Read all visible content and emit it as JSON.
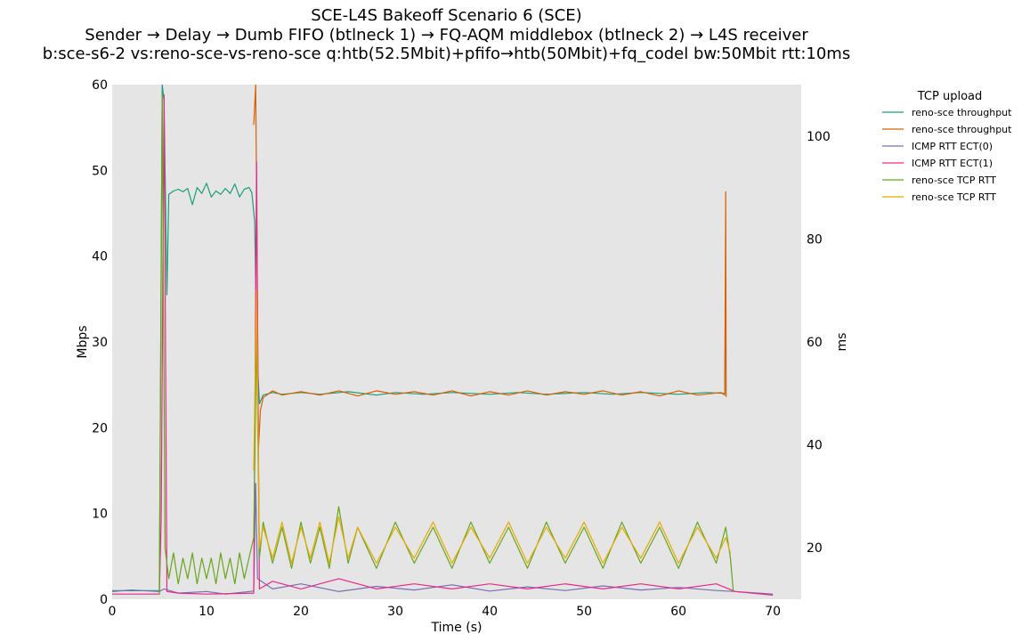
{
  "chart_data": {
    "type": "line",
    "title": "SCE-L4S Bakeoff Scenario 6 (SCE)",
    "subtitle_1": "Sender → Delay → Dumb FIFO (btlneck 1) → FQ-AQM middlebox (btlneck 2) → L4S receiver",
    "subtitle_2": "b:sce-s6-2 vs:reno-sce-vs-reno-sce q:htb(52.5Mbit)+pfifo→htb(50Mbit)+fq_codel bw:50Mbit rtt:10ms",
    "xlabel": "Time (s)",
    "ylabel_left": "Mbps",
    "ylabel_right": "ms",
    "xlim": [
      0,
      73
    ],
    "ylim_left": [
      0,
      60
    ],
    "ylim_right": [
      10,
      110
    ],
    "x_ticks": [
      "0",
      "10",
      "20",
      "30",
      "40",
      "50",
      "60",
      "70"
    ],
    "y_left_ticks": [
      "0",
      "10",
      "20",
      "30",
      "40",
      "50",
      "60"
    ],
    "y_right_ticks": [
      "20",
      "40",
      "60",
      "80",
      "100"
    ],
    "grid": false,
    "background": "#e5e5e5",
    "legend": {
      "title": "TCP upload",
      "placement": "outside-right",
      "entries": [
        {
          "label": "reno-sce throughput",
          "color": "#1b9e77"
        },
        {
          "label": "reno-sce throughput",
          "color": "#d95f02"
        },
        {
          "label": "ICMP RTT ECT(0)",
          "color": "#7570b3"
        },
        {
          "label": "ICMP RTT ECT(1)",
          "color": "#e7298a"
        },
        {
          "label": "reno-sce TCP RTT",
          "color": "#66a61e"
        },
        {
          "label": "reno-sce TCP RTT",
          "color": "#e6ab02"
        }
      ]
    },
    "series": [
      {
        "name": "reno-sce throughput",
        "axis": "left",
        "color": "#1b9e77",
        "points": [
          [
            0,
            1.0
          ],
          [
            5.0,
            1.0
          ],
          [
            5.3,
            60
          ],
          [
            5.5,
            58
          ],
          [
            5.8,
            35.5
          ],
          [
            6.0,
            47.2
          ],
          [
            6.5,
            47.6
          ],
          [
            7.0,
            47.8
          ],
          [
            7.5,
            47.5
          ],
          [
            8.0,
            47.9
          ],
          [
            8.5,
            46.0
          ],
          [
            9.0,
            48.0
          ],
          [
            9.5,
            47.3
          ],
          [
            10.0,
            48.5
          ],
          [
            10.5,
            46.9
          ],
          [
            11.0,
            47.6
          ],
          [
            11.5,
            47.2
          ],
          [
            12.0,
            47.9
          ],
          [
            12.5,
            47.3
          ],
          [
            13.0,
            48.4
          ],
          [
            13.5,
            46.9
          ],
          [
            14.0,
            47.8
          ],
          [
            14.5,
            48.0
          ],
          [
            14.8,
            47.4
          ],
          [
            15.1,
            44.0
          ],
          [
            15.3,
            30.0
          ],
          [
            15.6,
            22.8
          ],
          [
            16.0,
            23.8
          ],
          [
            17,
            24.1
          ],
          [
            18,
            23.9
          ],
          [
            20,
            24.1
          ],
          [
            22,
            23.9
          ],
          [
            25,
            24.2
          ],
          [
            28,
            23.8
          ],
          [
            30,
            24.1
          ],
          [
            33,
            23.9
          ],
          [
            36,
            24.1
          ],
          [
            40,
            23.9
          ],
          [
            43,
            24.1
          ],
          [
            46,
            23.9
          ],
          [
            50,
            24.1
          ],
          [
            53,
            23.9
          ],
          [
            56,
            24.1
          ],
          [
            60,
            23.9
          ],
          [
            63,
            24.1
          ],
          [
            64.9,
            24.0
          ],
          [
            65.0,
            35.2
          ]
        ]
      },
      {
        "name": "reno-sce throughput",
        "axis": "left",
        "color": "#d95f02",
        "points": [
          [
            15.0,
            55.3
          ],
          [
            15.2,
            60
          ],
          [
            15.3,
            48.0
          ],
          [
            15.5,
            17.5
          ],
          [
            15.7,
            22.0
          ],
          [
            16.0,
            23.5
          ],
          [
            17,
            24.3
          ],
          [
            18,
            23.8
          ],
          [
            20,
            24.2
          ],
          [
            22,
            23.8
          ],
          [
            24,
            24.3
          ],
          [
            26,
            23.7
          ],
          [
            28,
            24.3
          ],
          [
            30,
            23.9
          ],
          [
            32,
            24.2
          ],
          [
            34,
            23.8
          ],
          [
            36,
            24.3
          ],
          [
            38,
            23.7
          ],
          [
            40,
            24.2
          ],
          [
            42,
            23.8
          ],
          [
            44,
            24.3
          ],
          [
            46,
            23.8
          ],
          [
            48,
            24.2
          ],
          [
            50,
            23.9
          ],
          [
            52,
            24.3
          ],
          [
            54,
            23.8
          ],
          [
            56,
            24.2
          ],
          [
            58,
            23.7
          ],
          [
            60,
            24.3
          ],
          [
            62,
            23.8
          ],
          [
            64.5,
            24.1
          ],
          [
            64.9,
            23.8
          ],
          [
            65.0,
            47.5
          ],
          [
            65.05,
            23.6
          ]
        ]
      },
      {
        "name": "ICMP RTT ECT(0)",
        "axis": "right",
        "color": "#7570b3",
        "points": [
          [
            0,
            11.5
          ],
          [
            2,
            11.8
          ],
          [
            5,
            11.5
          ],
          [
            5.5,
            12.0
          ],
          [
            7,
            11.2
          ],
          [
            10,
            11.5
          ],
          [
            12,
            11.0
          ],
          [
            15,
            11.6
          ],
          [
            15.2,
            32.5
          ],
          [
            15.4,
            14.0
          ],
          [
            17,
            12.0
          ],
          [
            20,
            13.0
          ],
          [
            24,
            11.5
          ],
          [
            28,
            12.5
          ],
          [
            32,
            11.8
          ],
          [
            36,
            12.8
          ],
          [
            40,
            11.6
          ],
          [
            44,
            12.4
          ],
          [
            48,
            11.7
          ],
          [
            52,
            12.6
          ],
          [
            56,
            11.8
          ],
          [
            60,
            12.3
          ],
          [
            64,
            11.7
          ],
          [
            66,
            11.5
          ],
          [
            70,
            11.0
          ]
        ]
      },
      {
        "name": "ICMP RTT ECT(1)",
        "axis": "right",
        "color": "#e7298a",
        "points": [
          [
            0,
            11.0
          ],
          [
            5,
            11.0
          ],
          [
            5.2,
            26.0
          ],
          [
            5.5,
            108.0
          ],
          [
            5.8,
            11.5
          ],
          [
            7,
            11.2
          ],
          [
            10,
            11.0
          ],
          [
            15,
            11.2
          ],
          [
            15.3,
            95.0
          ],
          [
            15.6,
            12.0
          ],
          [
            17,
            13.5
          ],
          [
            20,
            12.0
          ],
          [
            24,
            14.0
          ],
          [
            28,
            12.0
          ],
          [
            32,
            13.0
          ],
          [
            36,
            12.0
          ],
          [
            40,
            13.0
          ],
          [
            44,
            12.0
          ],
          [
            48,
            13.0
          ],
          [
            52,
            12.0
          ],
          [
            56,
            13.0
          ],
          [
            60,
            12.0
          ],
          [
            64,
            13.0
          ],
          [
            66,
            11.5
          ],
          [
            70,
            10.8
          ]
        ]
      },
      {
        "name": "reno-sce TCP RTT",
        "axis": "right",
        "color": "#66a61e",
        "points": [
          [
            5.0,
            11.0
          ],
          [
            5.3,
            108.0
          ],
          [
            5.6,
            20.0
          ],
          [
            6,
            14
          ],
          [
            6.5,
            19
          ],
          [
            7,
            13
          ],
          [
            7.5,
            18
          ],
          [
            8,
            14
          ],
          [
            8.5,
            19
          ],
          [
            9,
            13
          ],
          [
            9.5,
            18
          ],
          [
            10,
            14
          ],
          [
            10.5,
            18
          ],
          [
            11,
            13
          ],
          [
            11.5,
            19
          ],
          [
            12,
            14
          ],
          [
            12.5,
            18
          ],
          [
            13,
            13
          ],
          [
            13.5,
            19
          ],
          [
            14,
            14
          ],
          [
            14.5,
            18
          ],
          [
            15.0,
            22
          ],
          [
            15.3,
            62
          ],
          [
            15.6,
            18
          ],
          [
            16,
            25
          ],
          [
            17,
            17
          ],
          [
            18,
            24
          ],
          [
            19,
            16
          ],
          [
            20,
            25
          ],
          [
            21,
            17
          ],
          [
            22,
            24
          ],
          [
            23,
            16
          ],
          [
            24,
            28
          ],
          [
            25,
            17
          ],
          [
            26,
            24
          ],
          [
            28,
            16
          ],
          [
            30,
            25
          ],
          [
            32,
            17
          ],
          [
            34,
            24
          ],
          [
            36,
            16
          ],
          [
            38,
            25
          ],
          [
            40,
            17
          ],
          [
            42,
            24
          ],
          [
            44,
            16
          ],
          [
            46,
            25
          ],
          [
            48,
            17
          ],
          [
            50,
            24
          ],
          [
            52,
            16
          ],
          [
            54,
            25
          ],
          [
            56,
            17
          ],
          [
            58,
            24
          ],
          [
            60,
            16
          ],
          [
            62,
            25
          ],
          [
            64,
            17
          ],
          [
            65,
            24
          ],
          [
            65.5,
            18
          ],
          [
            65.8,
            11.5
          ]
        ]
      },
      {
        "name": "reno-sce TCP RTT",
        "axis": "right",
        "color": "#e6ab02",
        "points": [
          [
            15.0,
            35
          ],
          [
            15.3,
            70
          ],
          [
            15.6,
            20
          ],
          [
            16,
            24
          ],
          [
            17,
            18
          ],
          [
            18,
            25
          ],
          [
            19,
            17
          ],
          [
            20,
            24
          ],
          [
            21,
            18
          ],
          [
            22,
            25
          ],
          [
            23,
            17
          ],
          [
            24,
            26
          ],
          [
            25,
            18
          ],
          [
            26,
            24
          ],
          [
            28,
            17
          ],
          [
            30,
            24
          ],
          [
            32,
            18
          ],
          [
            34,
            25
          ],
          [
            36,
            17
          ],
          [
            38,
            24
          ],
          [
            40,
            18
          ],
          [
            42,
            25
          ],
          [
            44,
            17
          ],
          [
            46,
            24
          ],
          [
            48,
            18
          ],
          [
            50,
            25
          ],
          [
            52,
            17
          ],
          [
            54,
            24
          ],
          [
            56,
            18
          ],
          [
            58,
            25
          ],
          [
            60,
            17
          ],
          [
            62,
            24
          ],
          [
            64,
            18
          ],
          [
            65,
            22
          ],
          [
            65.5,
            19
          ]
        ]
      }
    ]
  }
}
